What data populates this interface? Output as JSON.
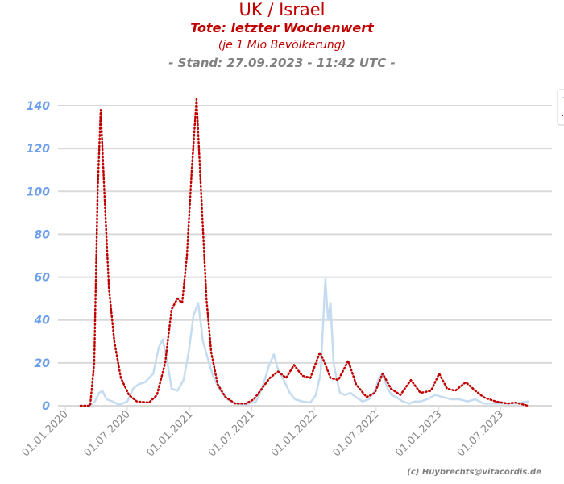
{
  "chart_data": {
    "type": "line",
    "title": "UK / Israel",
    "subtitle": "Tote: letzter Wochenwert",
    "subtitle2": "(je 1 Mio Bevölkerung)",
    "stand": "- Stand: 27.09.2023 - 11:42 UTC -",
    "x_unit": "days since 01.01.2020",
    "ylim": [
      0,
      140
    ],
    "yticks": [
      "0",
      "20",
      "40",
      "60",
      "80",
      "100",
      "120",
      "140"
    ],
    "xticks": [
      "01.01.2020",
      "01.07.2020",
      "01.01.2021",
      "01.07.2021",
      "01.01.2022",
      "01.07.2022",
      "01.01.2023",
      "01.07.2023"
    ],
    "xtick_days": [
      0,
      182,
      366,
      547,
      731,
      912,
      1096,
      1277
    ],
    "grid": true,
    "legend_placement": "right (cut off)",
    "series": [
      {
        "color": "#c5dcf0",
        "style": "solid",
        "x": [
          45,
          73,
          87,
          99,
          109,
          121,
          139,
          158,
          182,
          199,
          215,
          234,
          258,
          274,
          286,
          300,
          312,
          329,
          347,
          362,
          376,
          390,
          404,
          418,
          433,
          451,
          475,
          499,
          530,
          560,
          577,
          596,
          612,
          624,
          641,
          659,
          674,
          695,
          719,
          735,
          749,
          763,
          771,
          778,
          787,
          797,
          806,
          820,
          837,
          853,
          872,
          891,
          908,
          920,
          931,
          943,
          957,
          971,
          990,
          1009,
          1026,
          1042,
          1061,
          1085,
          1109,
          1132,
          1156,
          1180,
          1203,
          1227,
          1250,
          1286,
          1321,
          1357
        ],
        "y": [
          0,
          0,
          2,
          6,
          7,
          3,
          2,
          0.5,
          2,
          8,
          10,
          11,
          15,
          27,
          31,
          20,
          8,
          7,
          12,
          25,
          42,
          48,
          30,
          22,
          14,
          8,
          3,
          1,
          0.5,
          2,
          8,
          18,
          24,
          17,
          12,
          6,
          3,
          2,
          1.5,
          5,
          15,
          59,
          40,
          48,
          20,
          12,
          6,
          5,
          6,
          4,
          2,
          3,
          7,
          13,
          15,
          9,
          5,
          4,
          2,
          1,
          2,
          2,
          3,
          5,
          4,
          3,
          3,
          2,
          3,
          1,
          1,
          1,
          1,
          2
        ]
      },
      {
        "color": "#c00000",
        "style": "dotted",
        "x": [
          45,
          73,
          85,
          95,
          104,
          116,
          128,
          144,
          163,
          187,
          210,
          246,
          269,
          293,
          312,
          329,
          343,
          357,
          371,
          385,
          400,
          414,
          428,
          447,
          470,
          499,
          530,
          553,
          577,
          600,
          624,
          648,
          671,
          695,
          719,
          747,
          761,
          778,
          801,
          830,
          853,
          884,
          908,
          931,
          955,
          983,
          1014,
          1042,
          1073,
          1097,
          1120,
          1144,
          1175,
          1203,
          1227,
          1262,
          1298,
          1321,
          1357
        ],
        "y": [
          0,
          0,
          20,
          100,
          138,
          95,
          55,
          30,
          13,
          5,
          2,
          1.5,
          5,
          20,
          45,
          50,
          48,
          70,
          110,
          143,
          95,
          50,
          25,
          10,
          4,
          1,
          1,
          3,
          8,
          13,
          16,
          13,
          19,
          14,
          13,
          25,
          20,
          13,
          12,
          21,
          10,
          4,
          6,
          15,
          8,
          5,
          12,
          6,
          7,
          15,
          8,
          7,
          11,
          7,
          4,
          2,
          1,
          1.5,
          0
        ]
      }
    ],
    "credit": "(c) Huybrechts@vitacordis.de"
  }
}
